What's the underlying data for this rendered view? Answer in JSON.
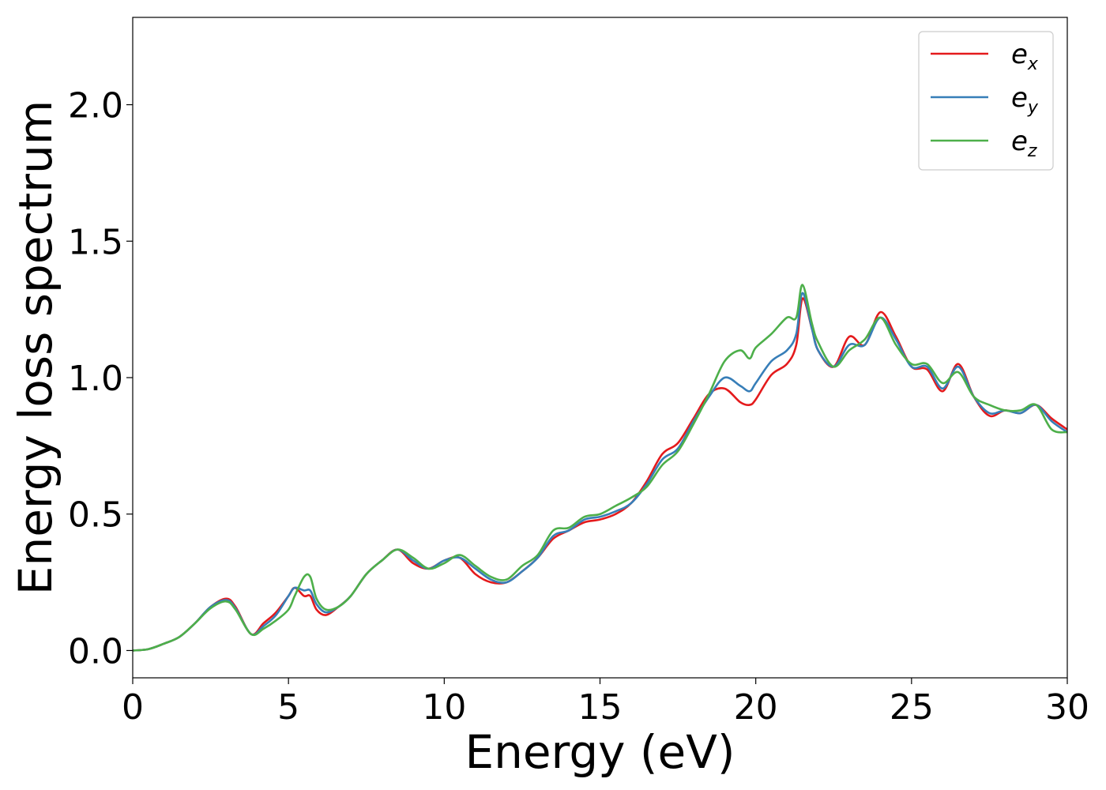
{
  "chart_data": {
    "type": "line",
    "title": "",
    "xlabel": "Energy (eV)",
    "ylabel": "Energy loss spectrum",
    "xlim": [
      0,
      30
    ],
    "ylim": [
      -0.1,
      2.32
    ],
    "xticks": [
      0,
      5,
      10,
      15,
      20,
      25,
      30
    ],
    "xtick_labels": [
      "0",
      "5",
      "10",
      "15",
      "20",
      "25",
      "30"
    ],
    "yticks": [
      0.0,
      0.5,
      1.0,
      1.5,
      2.0
    ],
    "ytick_labels": [
      "0.0",
      "0.5",
      "1.0",
      "1.5",
      "2.0"
    ],
    "grid": false,
    "legend_position": "top-right",
    "series": [
      {
        "name": "e",
        "subscript": "x",
        "color": "#e41a1c",
        "x": [
          0,
          0.5,
          1,
          1.5,
          2,
          2.5,
          3,
          3.3,
          3.8,
          4.2,
          4.6,
          5,
          5.2,
          5.5,
          5.7,
          5.9,
          6.2,
          6.6,
          7,
          7.5,
          8,
          8.5,
          9,
          9.5,
          10,
          10.5,
          11,
          11.5,
          12,
          12.5,
          13,
          13.5,
          14,
          14.5,
          15,
          15.5,
          16,
          16.5,
          17,
          17.5,
          18,
          18.5,
          19,
          19.5,
          19.8,
          20,
          20.5,
          21,
          21.3,
          21.5,
          21.8,
          22,
          22.5,
          23,
          23.5,
          24,
          24.5,
          25,
          25.5,
          26,
          26.5,
          27,
          27.5,
          28,
          28.5,
          29,
          29.5,
          30
        ],
        "y": [
          0,
          0.005,
          0.025,
          0.05,
          0.1,
          0.16,
          0.19,
          0.16,
          0.06,
          0.1,
          0.14,
          0.2,
          0.23,
          0.2,
          0.2,
          0.15,
          0.13,
          0.16,
          0.2,
          0.28,
          0.33,
          0.37,
          0.32,
          0.3,
          0.33,
          0.34,
          0.28,
          0.25,
          0.25,
          0.29,
          0.34,
          0.41,
          0.44,
          0.47,
          0.48,
          0.5,
          0.54,
          0.62,
          0.72,
          0.76,
          0.85,
          0.94,
          0.96,
          0.91,
          0.9,
          0.92,
          1.01,
          1.05,
          1.12,
          1.29,
          1.18,
          1.1,
          1.04,
          1.15,
          1.12,
          1.24,
          1.15,
          1.04,
          1.03,
          0.95,
          1.05,
          0.93,
          0.86,
          0.88,
          0.87,
          0.9,
          0.85,
          0.81
        ]
      },
      {
        "name": "e",
        "subscript": "y",
        "color": "#377eb8",
        "x": [
          0,
          0.5,
          1,
          1.5,
          2,
          2.5,
          3,
          3.3,
          3.8,
          4.2,
          4.6,
          5,
          5.2,
          5.5,
          5.7,
          5.9,
          6.2,
          6.6,
          7,
          7.5,
          8,
          8.5,
          9,
          9.5,
          10,
          10.5,
          11,
          11.5,
          12,
          12.5,
          13,
          13.5,
          14,
          14.5,
          15,
          15.5,
          16,
          16.5,
          17,
          17.5,
          18,
          18.5,
          19,
          19.5,
          19.8,
          20,
          20.5,
          21,
          21.3,
          21.5,
          21.8,
          22,
          22.5,
          23,
          23.5,
          24,
          24.5,
          25,
          25.5,
          26,
          26.5,
          27,
          27.5,
          28,
          28.5,
          29,
          29.5,
          30
        ],
        "y": [
          0,
          0.005,
          0.025,
          0.05,
          0.1,
          0.16,
          0.185,
          0.155,
          0.06,
          0.09,
          0.13,
          0.2,
          0.23,
          0.22,
          0.22,
          0.17,
          0.14,
          0.16,
          0.2,
          0.28,
          0.33,
          0.37,
          0.33,
          0.3,
          0.33,
          0.34,
          0.3,
          0.26,
          0.25,
          0.29,
          0.34,
          0.42,
          0.44,
          0.48,
          0.49,
          0.51,
          0.54,
          0.61,
          0.7,
          0.74,
          0.84,
          0.93,
          1.0,
          0.97,
          0.95,
          0.98,
          1.06,
          1.1,
          1.16,
          1.31,
          1.18,
          1.1,
          1.04,
          1.12,
          1.12,
          1.22,
          1.14,
          1.04,
          1.04,
          0.96,
          1.04,
          0.93,
          0.87,
          0.88,
          0.87,
          0.9,
          0.84,
          0.8
        ]
      },
      {
        "name": "e",
        "subscript": "z",
        "color": "#4daf4a",
        "x": [
          0,
          0.5,
          1,
          1.5,
          2,
          2.5,
          3,
          3.3,
          3.8,
          4.2,
          4.6,
          5,
          5.2,
          5.5,
          5.7,
          5.9,
          6.2,
          6.6,
          7,
          7.5,
          8,
          8.5,
          9,
          9.5,
          10,
          10.5,
          11,
          11.5,
          12,
          12.5,
          13,
          13.5,
          14,
          14.5,
          15,
          15.5,
          16,
          16.5,
          17,
          17.5,
          18,
          18.5,
          19,
          19.5,
          19.8,
          20,
          20.5,
          21,
          21.3,
          21.5,
          21.8,
          22,
          22.5,
          23,
          23.5,
          24,
          24.5,
          25,
          25.5,
          26,
          26.5,
          27,
          27.5,
          28,
          28.5,
          29,
          29.5,
          30
        ],
        "y": [
          0,
          0.005,
          0.025,
          0.05,
          0.1,
          0.155,
          0.18,
          0.15,
          0.06,
          0.08,
          0.11,
          0.15,
          0.2,
          0.27,
          0.27,
          0.19,
          0.15,
          0.16,
          0.2,
          0.28,
          0.33,
          0.37,
          0.34,
          0.3,
          0.32,
          0.35,
          0.31,
          0.27,
          0.26,
          0.31,
          0.35,
          0.44,
          0.45,
          0.49,
          0.5,
          0.53,
          0.56,
          0.6,
          0.68,
          0.73,
          0.83,
          0.94,
          1.06,
          1.1,
          1.07,
          1.11,
          1.16,
          1.22,
          1.22,
          1.34,
          1.2,
          1.13,
          1.04,
          1.1,
          1.14,
          1.22,
          1.12,
          1.05,
          1.05,
          0.98,
          1.02,
          0.93,
          0.9,
          0.88,
          0.88,
          0.9,
          0.81,
          0.8
        ]
      }
    ]
  }
}
